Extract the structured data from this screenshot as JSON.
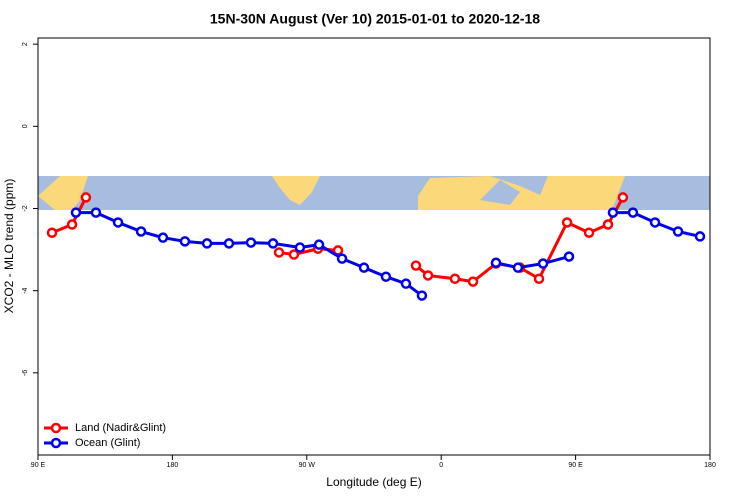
{
  "chart_data": {
    "type": "line",
    "title": "15N-30N August (Ver 10)   2015-01-01 to 2020-12-18",
    "x_label": "Longitude (deg E)",
    "y_label": "XCO2 - MLO trend (ppm)",
    "xlim": [
      90,
      540
    ],
    "ylim": [
      -8,
      2.15
    ],
    "xticks": [
      {
        "value": 90,
        "label": "90 E"
      },
      180,
      {
        "value": 270,
        "label": "90 W"
      },
      {
        "value": 360,
        "label": "0"
      },
      {
        "value": 450,
        "label": "90 E"
      },
      {
        "value": 540,
        "label": "180"
      }
    ],
    "yticks": [
      -6,
      -4,
      -2,
      0,
      2
    ],
    "legend": "bottom-left",
    "series": [
      {
        "name": "Land (Nadir&Glint)",
        "color": "#ff0000",
        "x": [
          99.4,
          112.8,
          122.1,
          null,
          251.4,
          261.4,
          277.5,
          290.9,
          null,
          343.1,
          351.2,
          369.2,
          381.3,
          396.7,
          412.8,
          425.5,
          444.3,
          459.0,
          471.7,
          481.7
        ],
        "values": [
          -2.59,
          -2.39,
          -1.73,
          null,
          -3.07,
          -3.12,
          -2.98,
          -3.02,
          null,
          -3.39,
          -3.63,
          -3.71,
          -3.78,
          -3.34,
          -3.44,
          -3.71,
          -2.34,
          -2.59,
          -2.39,
          -1.73
        ]
      },
      {
        "name": "Ocean (Glint)",
        "color": "#0000ee",
        "x": [
          115.4,
          128.8,
          143.6,
          159.0,
          173.7,
          188.4,
          203.2,
          217.9,
          232.6,
          247.4,
          265.4,
          278.2,
          293.6,
          308.3,
          323.0,
          336.4,
          347.1,
          null,
          396.7,
          411.4,
          428.2,
          445.6,
          null,
          475.0,
          488.4,
          503.2,
          518.6,
          533.3
        ],
        "values": [
          -2.1,
          -2.1,
          -2.34,
          -2.56,
          -2.71,
          -2.8,
          -2.85,
          -2.85,
          -2.83,
          -2.85,
          -2.95,
          -2.88,
          -3.22,
          -3.44,
          -3.66,
          -3.83,
          -4.12,
          null,
          -3.32,
          -3.44,
          -3.34,
          -3.17,
          null,
          -2.1,
          -2.1,
          -2.34,
          -2.56,
          -2.68
        ]
      }
    ]
  }
}
